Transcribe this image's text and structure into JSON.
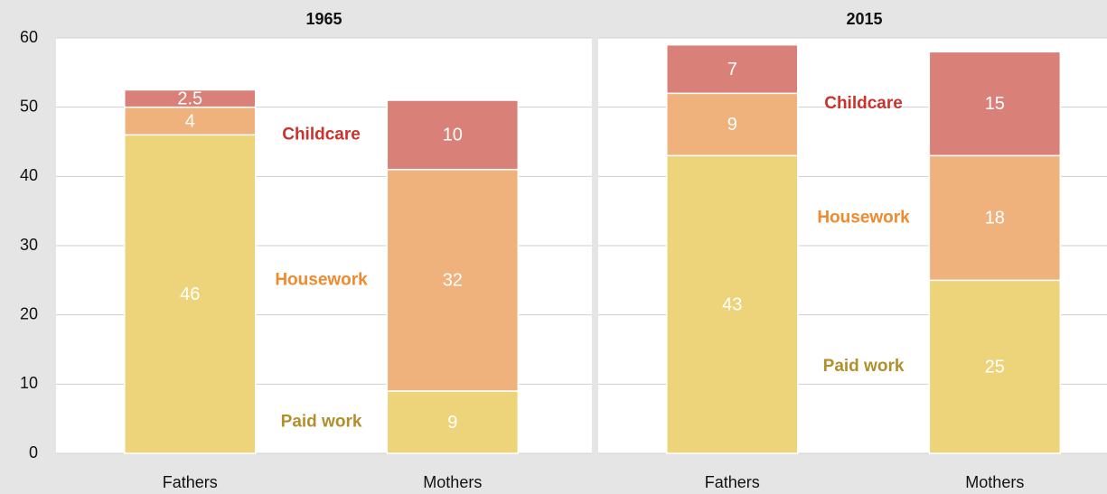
{
  "chart_data": [
    {
      "type": "bar",
      "stacked": true,
      "title": "1965",
      "categories": [
        "Fathers",
        "Mothers"
      ],
      "series": [
        {
          "name": "Paid work",
          "color": "#edd47b",
          "label_color": "#b0902c",
          "values": [
            46,
            9
          ]
        },
        {
          "name": "Housework",
          "color": "#f0b27c",
          "label_color": "#ef8a2e",
          "values": [
            4,
            32
          ]
        },
        {
          "name": "Childcare",
          "color": "#d98078",
          "label_color": "#c8342c",
          "values": [
            2.5,
            10
          ]
        }
      ],
      "ylim": [
        0,
        60
      ],
      "yticks": [
        0,
        10,
        20,
        30,
        40,
        50,
        60
      ],
      "grid": true
    },
    {
      "type": "bar",
      "stacked": true,
      "title": "2015",
      "sharey": true,
      "categories": [
        "Fathers",
        "Mothers"
      ],
      "series": [
        {
          "name": "Paid work",
          "color": "#edd47b",
          "label_color": "#b0902c",
          "values": [
            43,
            25
          ]
        },
        {
          "name": "Housework",
          "color": "#f0b27c",
          "label_color": "#ef8a2e",
          "values": [
            9,
            18
          ]
        },
        {
          "name": "Childcare",
          "color": "#d98078",
          "label_color": "#c8342c",
          "values": [
            7,
            15
          ]
        }
      ],
      "grid": true
    }
  ]
}
